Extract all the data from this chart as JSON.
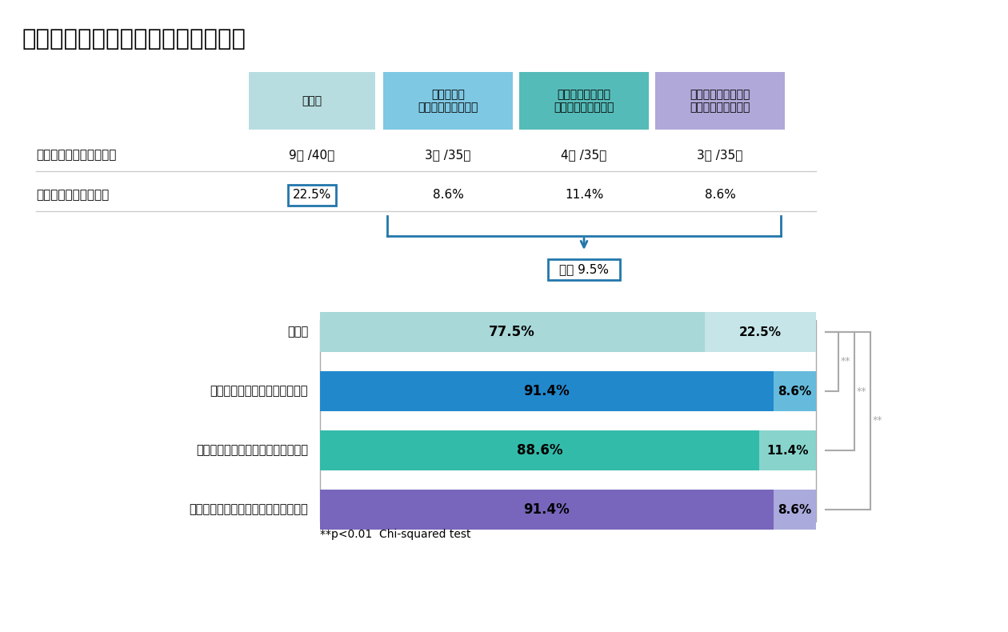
{
  "title": "図２　インフルエンザの年間罹患数",
  "header_labels": [
    "対照群",
    "３～６か月\n漢方薬を内服した群",
    "６か月～１年未満\n漢方薬を内服した群",
    "１年以上～２年未満\n漢方薬を内服した群"
  ],
  "header_colors": [
    "#b8dde0",
    "#7ec8e3",
    "#55bbb8",
    "#b0a8d8"
  ],
  "row1_label": "インフルエンザ罹患者数",
  "row1_values": [
    "9例 /40例",
    "3例 /35例",
    "4例 /35例",
    "3例 /35例"
  ],
  "row2_label": "インフルエンザ罹患率",
  "row2_values": [
    "22.5%",
    "8.6%",
    "11.4%",
    "8.6%"
  ],
  "avg_label": "平均 9.5%",
  "bar_labels": [
    "対照群",
    "３～６か月漢方薬を内服した群",
    "６か月～１年未満漢方を内服した群",
    "１年以上～２年未満漢方を内服した群"
  ],
  "bar_non_infected": [
    77.5,
    91.4,
    88.6,
    91.4
  ],
  "bar_infected": [
    22.5,
    8.6,
    11.4,
    8.6
  ],
  "bar_colors_non": [
    "#a8d8d8",
    "#2288cc",
    "#33bbaa",
    "#7766bb"
  ],
  "bar_colors_inf": [
    "#c5e5e8",
    "#66bbdd",
    "#88d4cc",
    "#aaaadd"
  ],
  "significance_note": "**p<0.01  Chi-squared test",
  "bracket_color": "#aaaaaa",
  "box_border_color": "#2277aa"
}
